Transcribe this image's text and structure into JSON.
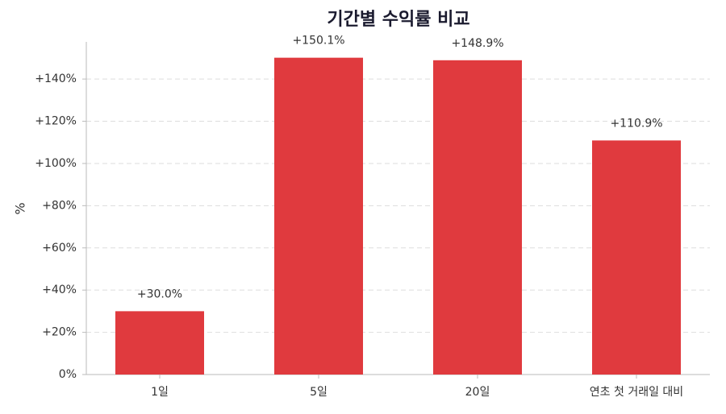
{
  "chart_data": {
    "type": "bar",
    "title": "기간별 수익률 비교",
    "ylabel": "%",
    "categories": [
      "1일",
      "5일",
      "20일",
      "연초 첫 거래일 대비"
    ],
    "values": [
      30.0,
      150.1,
      148.9,
      110.9
    ],
    "value_labels": [
      "+30.0%",
      "+150.1%",
      "+148.9%",
      "+110.9%"
    ],
    "color": "#e03a3e",
    "ylim": [
      0,
      157.6
    ],
    "yticks": [
      {
        "value": 0,
        "label": "0%"
      },
      {
        "value": 20,
        "label": "+20%"
      },
      {
        "value": 40,
        "label": "+40%"
      },
      {
        "value": 60,
        "label": "+60%"
      },
      {
        "value": 80,
        "label": "+80%"
      },
      {
        "value": 100,
        "label": "+100%"
      },
      {
        "value": 120,
        "label": "+120%"
      },
      {
        "value": 140,
        "label": "+140%"
      }
    ],
    "grid": true
  }
}
